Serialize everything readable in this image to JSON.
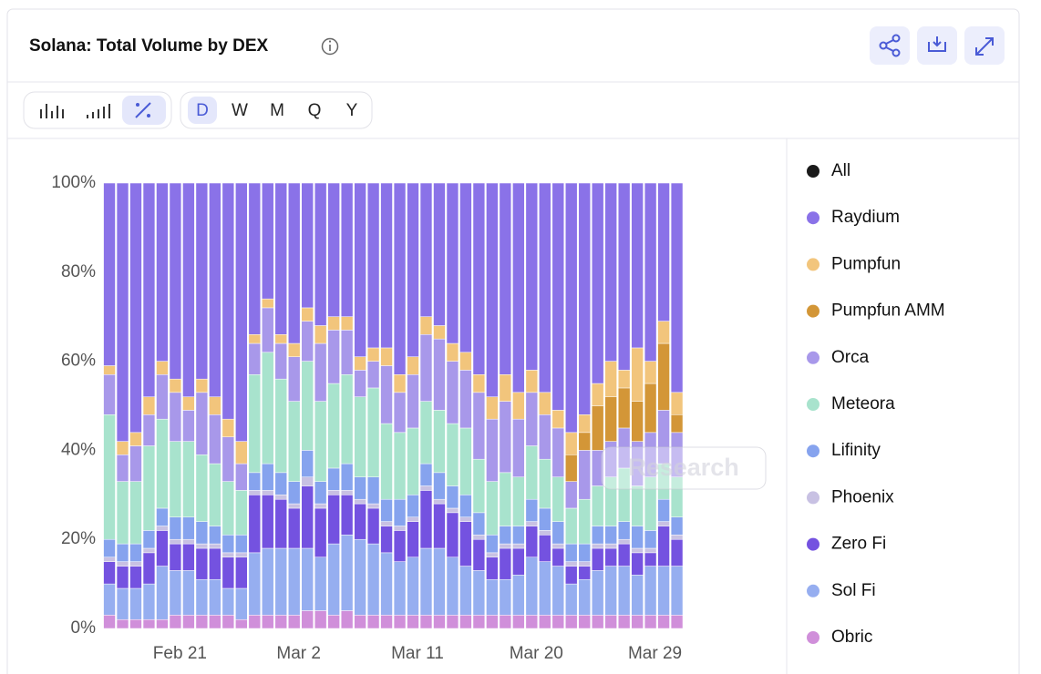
{
  "header": {
    "title": "Solana: Total Volume by DEX"
  },
  "toolbar": {
    "intervals": [
      "D",
      "W",
      "M",
      "Q",
      "Y"
    ],
    "selected": "D"
  },
  "watermark": "Research",
  "chart_data": {
    "type": "bar",
    "stacked": true,
    "categories": [
      null,
      null,
      null,
      null,
      null,
      null,
      null,
      "Feb 21",
      null,
      null,
      null,
      null,
      null,
      null,
      null,
      null,
      "Mar 2",
      null,
      null,
      null,
      null,
      null,
      null,
      null,
      null,
      "Mar 11",
      null,
      null,
      null,
      null,
      null,
      null,
      null,
      null,
      "Mar 20",
      null,
      null,
      null,
      null,
      null,
      null,
      null,
      null,
      "Mar 29"
    ],
    "ylim": [
      0,
      100
    ],
    "yticks": [
      {
        "value": 0,
        "label": "0%"
      },
      {
        "value": 20,
        "label": "20%"
      },
      {
        "value": 40,
        "label": "40%"
      },
      {
        "value": 60,
        "label": "60%"
      },
      {
        "value": 80,
        "label": "80%"
      },
      {
        "value": 100,
        "label": "100%"
      }
    ],
    "legend_all": {
      "name": "All",
      "color": "#1a1a1a"
    },
    "series": [
      {
        "name": "Raydium",
        "color": "#8a72e8",
        "values": [
          41,
          58,
          56,
          48,
          40,
          44,
          48,
          44,
          48,
          53,
          58,
          34,
          26,
          34,
          36,
          28,
          32,
          30,
          30,
          39,
          37,
          37,
          43,
          39,
          30,
          32,
          36,
          38,
          43,
          48,
          43,
          47,
          42,
          47,
          51,
          56,
          52,
          45,
          40,
          42,
          37,
          40,
          31,
          47
        ]
      },
      {
        "name": "Pumpfun",
        "color": "#f2c57c",
        "values": [
          2,
          3,
          3,
          4,
          3,
          3,
          3,
          3,
          4,
          4,
          5,
          2,
          2,
          2,
          3,
          3,
          4,
          3,
          3,
          3,
          3,
          4,
          4,
          4,
          4,
          3,
          4,
          4,
          4,
          5,
          6,
          6,
          5,
          5,
          4,
          5,
          4,
          5,
          8,
          4,
          12,
          5,
          5,
          5
        ]
      },
      {
        "name": "Pumpfun AMM",
        "color": "#d39637",
        "values": [
          0,
          0,
          0,
          0,
          0,
          0,
          0,
          0,
          0,
          0,
          0,
          0,
          0,
          0,
          0,
          0,
          0,
          0,
          0,
          0,
          0,
          0,
          0,
          0,
          0,
          0,
          0,
          0,
          0,
          0,
          0,
          0,
          0,
          0,
          0,
          6,
          4,
          10,
          10,
          9,
          9,
          11,
          15,
          4
        ]
      },
      {
        "name": "Orca",
        "color": "#a898ea",
        "values": [
          9,
          6,
          8,
          7,
          10,
          11,
          7,
          14,
          11,
          10,
          6,
          7,
          10,
          8,
          10,
          9,
          13,
          12,
          10,
          6,
          6,
          13,
          9,
          12,
          15,
          16,
          14,
          13,
          15,
          14,
          16,
          13,
          12,
          10,
          11,
          6,
          11,
          8,
          8,
          9,
          10,
          10,
          12,
          10
        ]
      },
      {
        "name": "Meteora",
        "color": "#a8e3cd",
        "values": [
          28,
          14,
          14,
          19,
          20,
          17,
          17,
          15,
          14,
          12,
          10,
          22,
          25,
          21,
          18,
          20,
          18,
          19,
          20,
          18,
          20,
          17,
          15,
          15,
          14,
          14,
          14,
          15,
          12,
          12,
          12,
          11,
          12,
          11,
          10,
          8,
          10,
          9,
          11,
          12,
          9,
          12,
          8,
          9
        ]
      },
      {
        "name": "Lifinity",
        "color": "#86a3ee",
        "values": [
          4,
          4,
          4,
          4,
          4,
          5,
          5,
          5,
          4,
          4,
          4,
          4,
          6,
          5,
          5,
          6,
          5,
          5,
          6,
          5,
          6,
          5,
          6,
          5,
          5,
          6,
          5,
          5,
          5,
          4,
          4,
          4,
          5,
          5,
          5,
          4,
          4,
          4,
          4,
          4,
          5,
          4,
          5,
          4
        ]
      },
      {
        "name": "Phoenix",
        "color": "#c8c1e3",
        "values": [
          1,
          1,
          1,
          1,
          1,
          1,
          1,
          1,
          1,
          1,
          1,
          1,
          1,
          1,
          1,
          2,
          1,
          1,
          1,
          1,
          1,
          1,
          1,
          1,
          1,
          1,
          1,
          1,
          1,
          1,
          1,
          1,
          1,
          1,
          1,
          1,
          1,
          1,
          1,
          1,
          1,
          1,
          1,
          1
        ]
      },
      {
        "name": "Zero Fi",
        "color": "#7452e0",
        "values": [
          5,
          5,
          5,
          7,
          8,
          6,
          6,
          7,
          7,
          7,
          7,
          13,
          12,
          11,
          9,
          14,
          11,
          11,
          9,
          8,
          8,
          6,
          7,
          8,
          13,
          10,
          10,
          10,
          7,
          5,
          7,
          6,
          7,
          6,
          4,
          4,
          3,
          5,
          4,
          5,
          5,
          3,
          9,
          6
        ]
      },
      {
        "name": "Sol Fi",
        "color": "#96aef0",
        "values": [
          7,
          7,
          7,
          8,
          12,
          10,
          10,
          8,
          8,
          6,
          7,
          14,
          15,
          15,
          15,
          14,
          12,
          16,
          17,
          17,
          16,
          14,
          12,
          13,
          15,
          15,
          13,
          11,
          10,
          8,
          8,
          9,
          13,
          12,
          11,
          7,
          8,
          10,
          11,
          11,
          9,
          11,
          11,
          11
        ]
      },
      {
        "name": "Obric",
        "color": "#d08fda",
        "values": [
          3,
          2,
          2,
          2,
          2,
          3,
          3,
          3,
          3,
          3,
          2,
          3,
          3,
          3,
          3,
          4,
          4,
          3,
          4,
          3,
          3,
          3,
          3,
          3,
          3,
          3,
          3,
          3,
          3,
          3,
          3,
          3,
          3,
          3,
          3,
          3,
          3,
          3,
          3,
          3,
          3,
          3,
          3,
          3
        ]
      }
    ]
  }
}
